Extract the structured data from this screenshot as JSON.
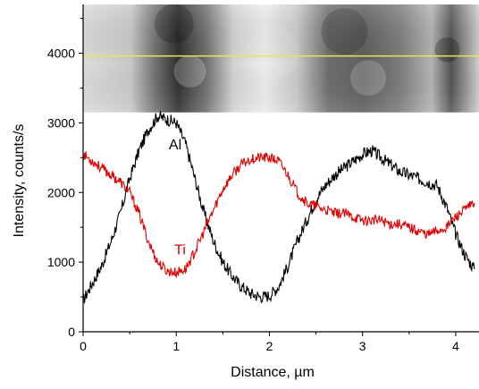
{
  "chart_data": {
    "type": "line",
    "title": "",
    "xlabel": "Distance, µm",
    "ylabel": "Intensity, counts/s",
    "xlim": [
      0,
      4.25
    ],
    "ylim": [
      0,
      4700
    ],
    "xticks": [
      0,
      1,
      2,
      3,
      4
    ],
    "yticks": [
      0,
      1000,
      2000,
      3000,
      4000
    ],
    "grid": false,
    "legend": "none",
    "annotations": [
      {
        "text": "Al",
        "color": "#000000",
        "x": 0.92,
        "y": 2620
      },
      {
        "text": "Ti",
        "color": "#e00000",
        "x": 0.98,
        "y": 1110
      }
    ],
    "inset_image": {
      "description_kind": "micrograph-strip",
      "line_color": "#e8e84a",
      "line_y_value": 3960,
      "x_range": [
        0,
        4.25
      ],
      "y_range": [
        3150,
        4700
      ]
    },
    "series": [
      {
        "name": "Al",
        "color": "#000000",
        "x": [
          0,
          0.1,
          0.2,
          0.3,
          0.4,
          0.5,
          0.6,
          0.7,
          0.8,
          0.9,
          1.0,
          1.1,
          1.2,
          1.3,
          1.4,
          1.5,
          1.6,
          1.7,
          1.8,
          1.9,
          2.0,
          2.1,
          2.2,
          2.3,
          2.4,
          2.5,
          2.6,
          2.7,
          2.8,
          2.9,
          3.0,
          3.1,
          3.2,
          3.3,
          3.4,
          3.5,
          3.6,
          3.7,
          3.8,
          3.9,
          4.0,
          4.1,
          4.2
        ],
        "values": [
          450,
          700,
          950,
          1300,
          1700,
          2200,
          2600,
          2900,
          3100,
          3050,
          3000,
          2700,
          2200,
          1700,
          1300,
          1000,
          800,
          650,
          550,
          500,
          520,
          650,
          950,
          1300,
          1600,
          1900,
          2100,
          2250,
          2350,
          2450,
          2550,
          2600,
          2500,
          2400,
          2300,
          2250,
          2200,
          2150,
          2100,
          1800,
          1400,
          1100,
          900
        ]
      },
      {
        "name": "Ti",
        "color": "#e00000",
        "x": [
          0,
          0.1,
          0.2,
          0.3,
          0.4,
          0.5,
          0.6,
          0.7,
          0.8,
          0.9,
          1.0,
          1.1,
          1.2,
          1.3,
          1.4,
          1.5,
          1.6,
          1.7,
          1.8,
          1.9,
          2.0,
          2.1,
          2.2,
          2.3,
          2.4,
          2.5,
          2.6,
          2.7,
          2.8,
          2.9,
          3.0,
          3.1,
          3.2,
          3.3,
          3.4,
          3.5,
          3.6,
          3.7,
          3.8,
          3.9,
          4.0,
          4.1,
          4.2
        ],
        "values": [
          2550,
          2450,
          2350,
          2250,
          2150,
          2000,
          1700,
          1300,
          1000,
          870,
          850,
          900,
          1150,
          1450,
          1750,
          2050,
          2250,
          2400,
          2480,
          2500,
          2500,
          2450,
          2250,
          2000,
          1850,
          1800,
          1750,
          1700,
          1700,
          1650,
          1600,
          1600,
          1600,
          1550,
          1550,
          1500,
          1450,
          1400,
          1450,
          1500,
          1650,
          1750,
          1850
        ]
      }
    ]
  }
}
